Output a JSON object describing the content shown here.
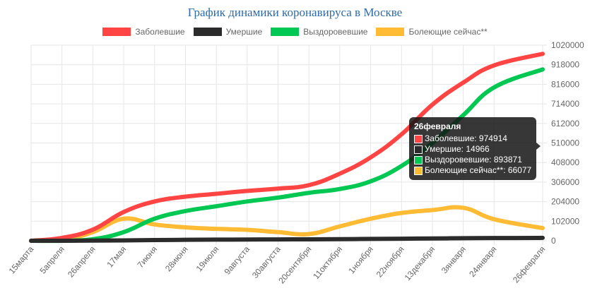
{
  "chart_data": {
    "type": "line",
    "title": "График динамики коронавируса в Москве",
    "x_labels": [
      "15марта",
      "5апреля",
      "26апреля",
      "17мая",
      "7июня",
      "28июня",
      "19июля",
      "9августа",
      "30августа",
      "20сентября",
      "11октября",
      "1ноября",
      "22ноября",
      "13декабря",
      "3января",
      "24января",
      "26февраля"
    ],
    "x_days": [
      0,
      21,
      42,
      63,
      84,
      105,
      126,
      147,
      168,
      189,
      210,
      231,
      252,
      273,
      294,
      315,
      348
    ],
    "ylim": [
      0,
      1020000
    ],
    "y_ticks": [
      "0",
      "102000",
      "204000",
      "306000",
      "408000",
      "510000",
      "612000",
      "714000",
      "816000",
      "918000",
      "1020000"
    ],
    "y_tick_values": [
      0,
      102000,
      204000,
      306000,
      408000,
      510000,
      612000,
      714000,
      816000,
      918000,
      1020000
    ],
    "legend_position": "top",
    "grid": true,
    "series": [
      {
        "name": "Заболевшие",
        "color": "#ff4444",
        "values": [
          0,
          15000,
          58000,
          150000,
          205000,
          230000,
          245000,
          260000,
          272000,
          290000,
          350000,
          435000,
          555000,
          710000,
          825000,
          915000,
          974914
        ]
      },
      {
        "name": "Умершие",
        "color": "#2b2b2b",
        "values": [
          0,
          200,
          1000,
          2000,
          3500,
          5000,
          5800,
          6500,
          7000,
          7500,
          8300,
          9500,
          10700,
          12000,
          13200,
          14100,
          14966
        ]
      },
      {
        "name": "Выздоровевшие",
        "color": "#00c853",
        "values": [
          0,
          0,
          8000,
          45000,
          115000,
          155000,
          180000,
          205000,
          225000,
          250000,
          270000,
          310000,
          390000,
          510000,
          655000,
          800000,
          893871
        ]
      },
      {
        "name": "Болеющие сейчас**",
        "color": "#ffbb33",
        "values": [
          0,
          5000,
          45000,
          115000,
          85000,
          70000,
          62000,
          57000,
          45000,
          35000,
          75000,
          115000,
          145000,
          160000,
          172000,
          112000,
          66077
        ]
      }
    ]
  },
  "tooltip": {
    "title": "26февраля",
    "rows": [
      "Заболевшие: 974914",
      "Умершие: 14966",
      "Выздоровевшие: 893871",
      "Болеющие сейчас**: 66077"
    ]
  }
}
